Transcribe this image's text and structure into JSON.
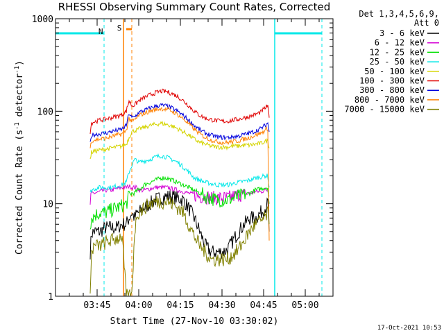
{
  "chart_data": {
    "type": "line",
    "title": "RHESSI Observing Summary Count Rates, Corrected",
    "xlabel": "Start Time (27-Nov-10 03:30:02)",
    "ylabel_main": "Corrected Count Rate (s",
    "ylabel_sup1": "-1",
    "ylabel_mid": " detector",
    "ylabel_sup2": "-1",
    "ylabel_end": ")",
    "y_scale": "log",
    "ylim": [
      1,
      1000
    ],
    "xlim_minutes": [
      0,
      100
    ],
    "x_ticks": [
      {
        "label": "03:45",
        "minute": 15
      },
      {
        "label": "04:00",
        "minute": 30
      },
      {
        "label": "04:15",
        "minute": 45
      },
      {
        "label": "04:30",
        "minute": 60
      },
      {
        "label": "04:45",
        "minute": 75
      },
      {
        "label": "05:00",
        "minute": 90
      }
    ],
    "y_ticks": [
      {
        "label": "1",
        "value": 1
      },
      {
        "label": "10",
        "value": 10
      },
      {
        "label": "100",
        "value": 100
      },
      {
        "label": "1000",
        "value": 1000
      }
    ],
    "legend_header": [
      "Det 1,3,4,5,6,9,",
      "Att 0"
    ],
    "legend_placement": "right",
    "series": [
      {
        "name": "3 - 6 keV",
        "color": "#000000",
        "x": [
          12.5,
          13,
          14,
          16,
          18,
          20,
          22,
          24,
          25.5,
          26.5,
          27.5,
          28.5,
          29.5,
          30,
          32,
          34,
          36,
          38,
          40,
          42,
          44,
          46,
          48,
          50,
          52,
          54,
          56,
          58,
          60,
          62,
          64,
          66,
          68,
          70,
          72,
          74,
          75.5,
          76.5,
          77
        ],
        "y": [
          3,
          4.8,
          5,
          5,
          5.5,
          5.5,
          5.5,
          6,
          6,
          7,
          8,
          7,
          8,
          8,
          9,
          10,
          11,
          11.5,
          12,
          12,
          11.5,
          11,
          9,
          7,
          5,
          3.5,
          3,
          3,
          3,
          3.2,
          4,
          5,
          6,
          7,
          7,
          8,
          9,
          10,
          5
        ]
      },
      {
        "name": "6 - 12 keV",
        "color": "#d400d4",
        "x": [
          12.5,
          13,
          14,
          16,
          18,
          20,
          22,
          24,
          25.5,
          26.5,
          27.5,
          28.5,
          29.5,
          30,
          32,
          34,
          36,
          38,
          40,
          42,
          44,
          46,
          48,
          50,
          52,
          54,
          56,
          58,
          60,
          62,
          64,
          66,
          68,
          70,
          72,
          74,
          75.5,
          76.5,
          77
        ],
        "y": [
          10,
          13,
          13,
          13.5,
          14,
          14,
          14.5,
          15,
          15,
          15.5,
          15,
          15,
          15,
          14,
          14,
          14.5,
          15,
          15,
          15,
          14.5,
          14,
          13.5,
          13,
          12.5,
          12,
          12,
          11.5,
          11.5,
          11.5,
          11.5,
          12,
          12.5,
          12.5,
          13,
          13.5,
          13.5,
          14,
          14,
          12
        ]
      },
      {
        "name": "12 - 25 keV",
        "color": "#00e000",
        "x": [
          12.5,
          13,
          14,
          16,
          18,
          20,
          22,
          24,
          25.5,
          26.5,
          27.5,
          28.5,
          29.5,
          30,
          32,
          34,
          36,
          38,
          40,
          42,
          44,
          46,
          48,
          50,
          52,
          54,
          56,
          58,
          60,
          62,
          64,
          66,
          68,
          70,
          72,
          74,
          75.5,
          76.5,
          77
        ],
        "y": [
          6,
          7,
          7.5,
          8,
          8,
          8.5,
          9,
          9.5,
          10,
          12,
          13,
          13,
          14,
          14,
          16,
          17,
          18,
          19,
          19,
          18,
          17,
          16,
          15,
          14,
          13,
          12,
          11.5,
          11,
          11,
          11,
          11.5,
          12,
          12.5,
          13,
          14,
          14.5,
          15,
          15,
          10
        ]
      },
      {
        "name": "25 - 50 keV",
        "color": "#00e8e8",
        "x": [
          12.5,
          13,
          14,
          16,
          18,
          20,
          22,
          24,
          25.5,
          26.5,
          27.5,
          28.5,
          29.5,
          30,
          32,
          34,
          36,
          38,
          40,
          42,
          44,
          46,
          48,
          50,
          52,
          54,
          56,
          58,
          60,
          62,
          64,
          66,
          68,
          70,
          72,
          74,
          75.5,
          76.5,
          77
        ],
        "y": [
          13,
          14,
          14.5,
          15,
          15,
          15,
          15.5,
          16,
          17,
          22,
          26,
          30,
          29,
          28,
          29,
          30,
          32,
          33,
          32,
          30,
          28,
          25,
          22,
          19,
          18,
          17,
          16.5,
          16,
          16,
          16,
          16.5,
          17,
          17.5,
          18,
          19,
          19.5,
          20,
          20,
          15
        ]
      },
      {
        "name": "50 - 100 keV",
        "color": "#d4d400",
        "x": [
          12.5,
          13,
          14,
          16,
          18,
          20,
          22,
          24,
          25.5,
          26.5,
          27.5,
          28.5,
          29.5,
          30,
          32,
          34,
          36,
          38,
          40,
          42,
          44,
          46,
          48,
          50,
          52,
          54,
          56,
          58,
          60,
          62,
          64,
          66,
          68,
          70,
          72,
          74,
          75.5,
          76.5,
          77
        ],
        "y": [
          30,
          36,
          37,
          38,
          39,
          40,
          41,
          42,
          44,
          52,
          60,
          62,
          63,
          64,
          67,
          70,
          72,
          74,
          72,
          69,
          65,
          60,
          55,
          50,
          46,
          44,
          42,
          41,
          41,
          41,
          42,
          42,
          43,
          43,
          44,
          45,
          47,
          48,
          40
        ]
      },
      {
        "name": "100 - 300 keV",
        "color": "#e00000",
        "x": [
          12.5,
          13,
          14,
          16,
          18,
          20,
          22,
          24,
          25.5,
          26.5,
          27.5,
          28.5,
          29.5,
          30,
          32,
          34,
          36,
          38,
          40,
          42,
          44,
          46,
          48,
          50,
          52,
          54,
          56,
          58,
          60,
          62,
          64,
          66,
          68,
          70,
          72,
          74,
          75.5,
          76.5,
          77
        ],
        "y": [
          60,
          75,
          77,
          80,
          82,
          85,
          88,
          92,
          100,
          130,
          115,
          117,
          125,
          130,
          140,
          150,
          158,
          165,
          163,
          155,
          145,
          130,
          115,
          100,
          90,
          84,
          81,
          79,
          78,
          78,
          80,
          82,
          85,
          88,
          92,
          98,
          108,
          115,
          85
        ]
      },
      {
        "name": "300 - 800 keV",
        "color": "#0000dd",
        "x": [
          12.5,
          13,
          14,
          16,
          18,
          20,
          22,
          24,
          25.5,
          26.5,
          27.5,
          28.5,
          29.5,
          30,
          32,
          34,
          36,
          38,
          40,
          42,
          44,
          46,
          48,
          50,
          52,
          54,
          56,
          58,
          60,
          62,
          64,
          66,
          68,
          70,
          72,
          74,
          75.5,
          76.5,
          77
        ],
        "y": [
          45,
          55,
          56,
          57,
          58,
          60,
          62,
          64,
          70,
          95,
          85,
          87,
          93,
          97,
          102,
          108,
          113,
          116,
          114,
          108,
          100,
          90,
          80,
          70,
          63,
          58,
          55,
          53,
          52,
          52,
          53,
          54,
          56,
          58,
          61,
          65,
          70,
          75,
          60
        ]
      },
      {
        "name": "800 - 7000 keV",
        "color": "#ff8000",
        "x": [
          12.5,
          13,
          14,
          16,
          18,
          20,
          22,
          24,
          25.5,
          26.5,
          27.5,
          28.5,
          29.5,
          30,
          32,
          34,
          36,
          38,
          40,
          42,
          44,
          46,
          48,
          50,
          52,
          54,
          56,
          58,
          60,
          62,
          64,
          66,
          68,
          70,
          72,
          74,
          75.5,
          76.5,
          77
        ],
        "y": [
          40,
          48,
          49,
          50,
          51,
          53,
          55,
          57,
          62,
          84,
          78,
          80,
          86,
          90,
          95,
          100,
          104,
          107,
          105,
          100,
          92,
          83,
          73,
          64,
          57,
          52,
          49,
          47,
          46,
          46,
          47,
          48,
          50,
          52,
          55,
          58,
          62,
          66,
          4
        ]
      },
      {
        "name": "7000 - 15000 keV",
        "color": "#808000",
        "x": [
          12.5,
          13,
          14,
          16,
          18,
          20,
          22,
          24,
          25.5,
          26.5,
          27.5,
          28.5,
          29.5,
          30,
          32,
          34,
          36,
          38,
          40,
          42,
          44,
          46,
          48,
          50,
          52,
          54,
          56,
          58,
          60,
          62,
          64,
          66,
          68,
          70,
          72,
          74,
          75.5,
          76.5,
          77
        ],
        "y": [
          1,
          3,
          3.5,
          3.5,
          3.8,
          4,
          4.2,
          4.5,
          1,
          1,
          1,
          5,
          8,
          8,
          9,
          10,
          10.5,
          10.5,
          10.5,
          10,
          9,
          8,
          6,
          4.5,
          3.5,
          3,
          2.5,
          2.5,
          2.5,
          2.5,
          2.8,
          3.2,
          4,
          5,
          6,
          6.5,
          7,
          8,
          6
        ]
      }
    ],
    "annotations": [
      {
        "label": "N",
        "color": "#00e8e8"
      },
      {
        "label": "S",
        "color": "#ff8000"
      }
    ],
    "footer_timestamp": "17-Oct-2021 10:53"
  }
}
